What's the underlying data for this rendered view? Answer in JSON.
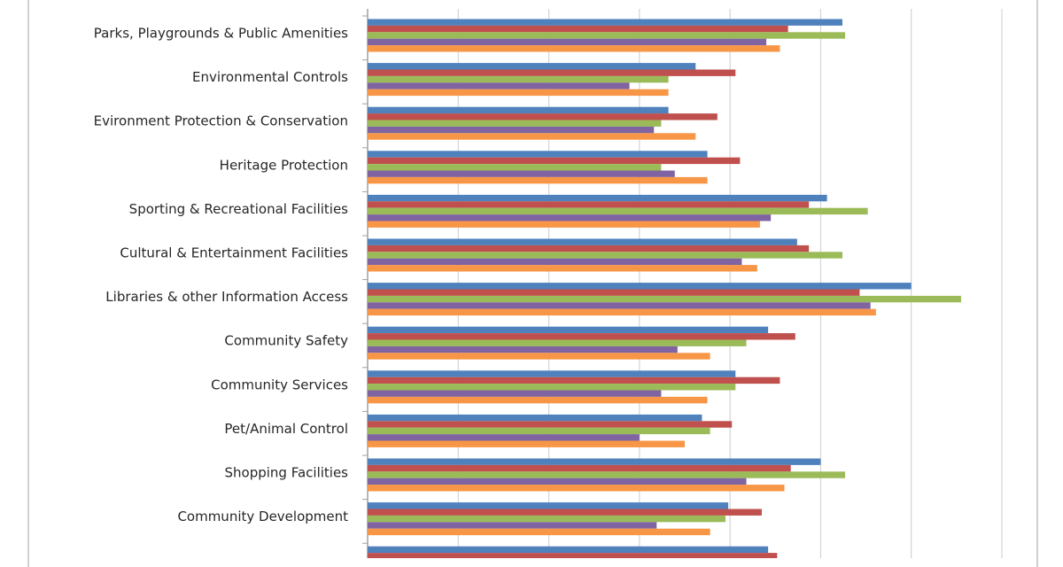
{
  "chart_data": {
    "type": "bar",
    "orientation": "horizontal",
    "categories": [
      "Parks, Playgrounds & Public Amenities",
      "Environmental Controls",
      "Evironment Protection & Conservation",
      "Heritage Protection",
      "Sporting & Recreational Facilities",
      "Cultural & Entertainment Facilities",
      "Libraries & other Information Access",
      "Community Safety",
      "Community Services",
      "Pet/Animal Control",
      "Shopping Facilities",
      "Community Development",
      ""
    ],
    "series": [
      {
        "color": "#4F81BD",
        "values": [
          5.24,
          3.62,
          3.32,
          3.75,
          5.07,
          4.74,
          6.0,
          4.42,
          4.06,
          3.69,
          5.0,
          3.98,
          4.42
        ]
      },
      {
        "color": "#C0504D",
        "values": [
          4.64,
          4.06,
          3.86,
          4.11,
          4.87,
          4.87,
          5.43,
          4.72,
          4.55,
          4.02,
          4.67,
          4.35,
          4.52
        ]
      },
      {
        "color": "#9BBB59",
        "values": [
          5.27,
          3.32,
          3.24,
          3.24,
          5.52,
          5.24,
          6.55,
          4.18,
          4.06,
          3.78,
          5.27,
          3.95,
          null
        ]
      },
      {
        "color": "#8064A2",
        "values": [
          4.4,
          2.89,
          3.16,
          3.39,
          4.45,
          4.13,
          5.55,
          3.42,
          3.24,
          3.0,
          4.18,
          3.19,
          null
        ]
      },
      {
        "color": "#F79646",
        "values": [
          4.55,
          3.32,
          3.62,
          3.75,
          4.33,
          4.3,
          5.61,
          3.78,
          3.75,
          3.5,
          4.6,
          3.78,
          null
        ]
      }
    ],
    "xlim": [
      0,
      7
    ],
    "grid": true,
    "legend": "none"
  }
}
